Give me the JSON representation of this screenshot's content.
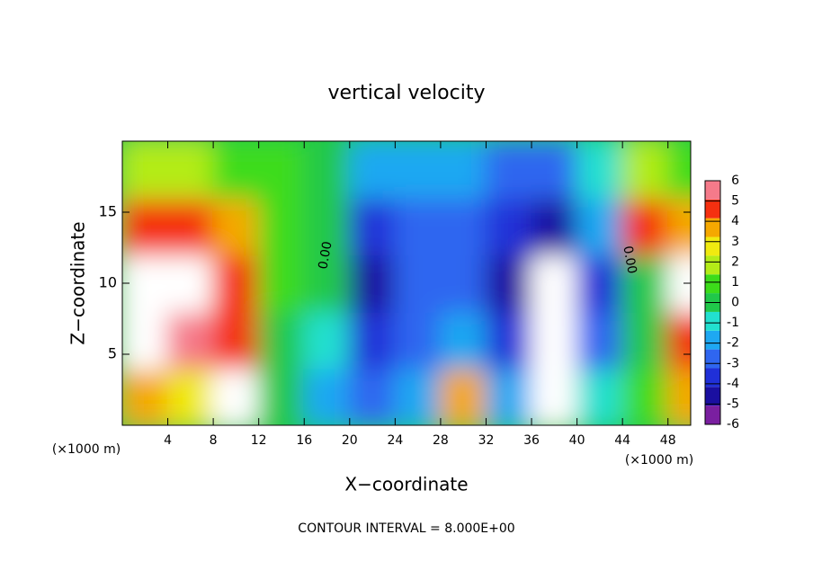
{
  "chart_data": {
    "type": "heatmap",
    "title": "vertical velocity",
    "x_label": "X−coordinate",
    "y_label": "Z−coordinate",
    "x_unit": "(×1000 m)",
    "x_unit_right": "(×1000 m)",
    "footer": "CONTOUR INTERVAL = 8.000E+00",
    "annotations": [
      "0.00",
      "0.00"
    ],
    "x": [
      2,
      6,
      10,
      14,
      18,
      22,
      26,
      30,
      34,
      38,
      42,
      46,
      50
    ],
    "y": [
      2,
      6,
      10,
      14,
      18
    ],
    "z": [
      [
        4,
        3,
        8,
        0,
        -2,
        -3,
        -2,
        4,
        -2,
        -7,
        -1,
        1,
        4
      ],
      [
        8,
        6,
        5,
        0,
        -1,
        -4,
        -3,
        -2,
        -4,
        -8,
        -3,
        0,
        5
      ],
      [
        8,
        8,
        5,
        1,
        0,
        -5,
        -3,
        -3,
        -5,
        -8,
        -4,
        0,
        8
      ],
      [
        5,
        5,
        4,
        1,
        0,
        -4,
        -3,
        -3,
        -4,
        -5,
        -2,
        5,
        4
      ],
      [
        2,
        2,
        1,
        0.5,
        0,
        -2,
        -2,
        -2,
        -3,
        -3,
        -1,
        2,
        1
      ]
    ],
    "xlim": [
      0,
      50
    ],
    "ylim": [
      0,
      20
    ],
    "xticks": [
      4,
      8,
      12,
      16,
      20,
      24,
      28,
      32,
      36,
      40,
      44,
      48
    ],
    "yticks": [
      5,
      10,
      15
    ],
    "colorbar_lim": [
      -6,
      6
    ],
    "colorbar_ticks": [
      6,
      5,
      4,
      3,
      2,
      1,
      0,
      -1,
      -2,
      -3,
      -4,
      -5,
      -6
    ],
    "colors": [
      "#7a1fa0",
      "#1a0fa0",
      "#2030d8",
      "#2f66f0",
      "#1ea8f2",
      "#22e0d0",
      "#20c84a",
      "#3cdc1a",
      "#b4ec18",
      "#f0ea10",
      "#f5a800",
      "#f53010",
      "#f57a8a"
    ]
  }
}
